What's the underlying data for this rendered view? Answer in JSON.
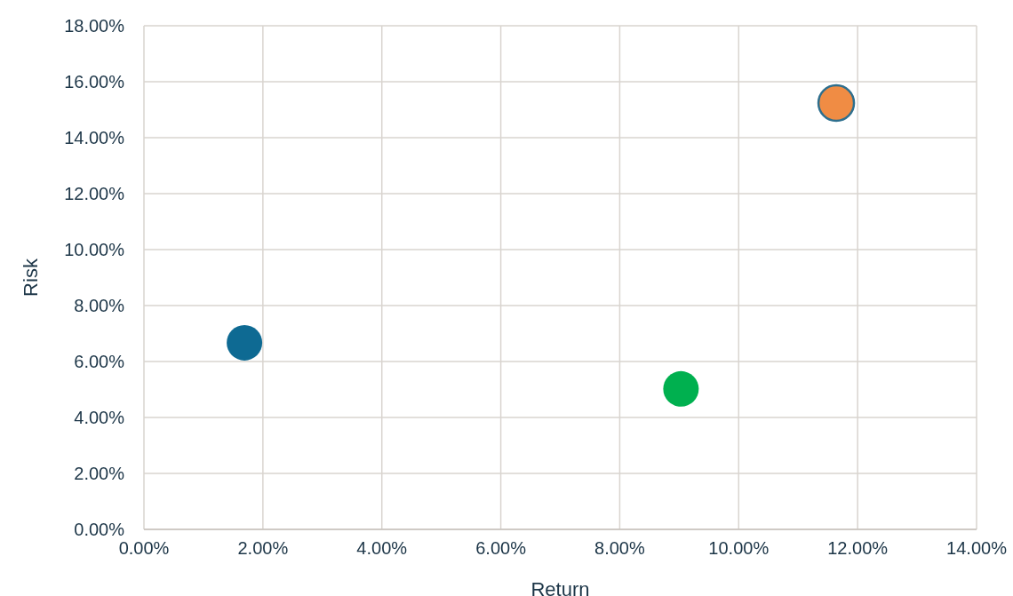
{
  "chart_data": {
    "type": "scatter",
    "xlabel": "Return",
    "ylabel": "Risk",
    "x": [
      1.69,
      9.03,
      11.64
    ],
    "values": [
      6.67,
      5.02,
      15.24
    ],
    "colors": [
      "#0e6a93",
      "#00b04f",
      "#f08c44"
    ],
    "marker": "circle",
    "grid": true,
    "xlim": [
      0,
      14
    ],
    "ylim": [
      0,
      18
    ],
    "xticks": [
      {
        "value": 0,
        "label": "0.00%"
      },
      {
        "value": 2,
        "label": "2.00%"
      },
      {
        "value": 4,
        "label": "4.00%"
      },
      {
        "value": 6,
        "label": "6.00%"
      },
      {
        "value": 8,
        "label": "8.00%"
      },
      {
        "value": 10,
        "label": "10.00%"
      },
      {
        "value": 12,
        "label": "12.00%"
      },
      {
        "value": 14,
        "label": "14.00%"
      }
    ],
    "yticks": [
      {
        "value": 0,
        "label": "0.00%"
      },
      {
        "value": 2,
        "label": "2.00%"
      },
      {
        "value": 4,
        "label": "4.00%"
      },
      {
        "value": 6,
        "label": "6.00%"
      },
      {
        "value": 8,
        "label": "8.00%"
      },
      {
        "value": 10,
        "label": "10.00%"
      },
      {
        "value": 12,
        "label": "12.00%"
      },
      {
        "value": 14,
        "label": "14.00%"
      },
      {
        "value": 16,
        "label": "16.00%"
      },
      {
        "value": 18,
        "label": "18.00%"
      }
    ]
  }
}
